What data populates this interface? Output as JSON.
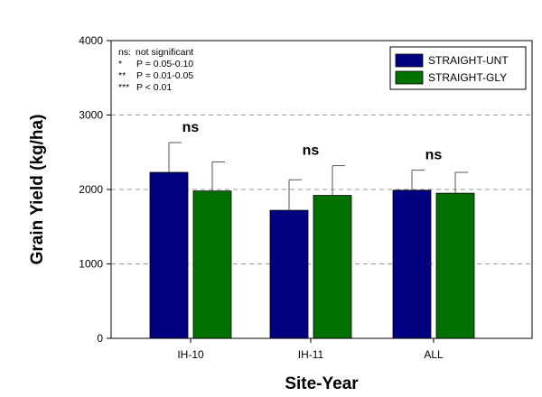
{
  "chart_data": {
    "type": "bar",
    "xlabel": "Site-Year",
    "ylabel": "Grain Yield (kg/ha)",
    "ylim": [
      0,
      4000
    ],
    "yticks": [
      0,
      1000,
      2000,
      3000,
      4000
    ],
    "grid": "dashed horizontal at 2000 and 3000",
    "categories": [
      "IH-10",
      "IH-11",
      "ALL"
    ],
    "series": [
      {
        "name": "STRAIGHT-UNT",
        "color": "#000080",
        "values": [
          2230,
          1720,
          1990
        ],
        "errors": [
          400,
          410,
          270
        ]
      },
      {
        "name": "STRAIGHT-GLY",
        "color": "#007000",
        "values": [
          1980,
          1920,
          1950
        ],
        "errors": [
          390,
          400,
          280
        ]
      }
    ],
    "significance": [
      "ns",
      "ns",
      "ns"
    ],
    "legend_position": "top-right",
    "notes": [
      {
        "mark": "ns:",
        "text": "not significant"
      },
      {
        "mark": "*",
        "text": "P = 0.05-0.10"
      },
      {
        "mark": "**",
        "text": "P = 0.01-0.05"
      },
      {
        "mark": "***",
        "text": "P < 0.01"
      }
    ]
  }
}
